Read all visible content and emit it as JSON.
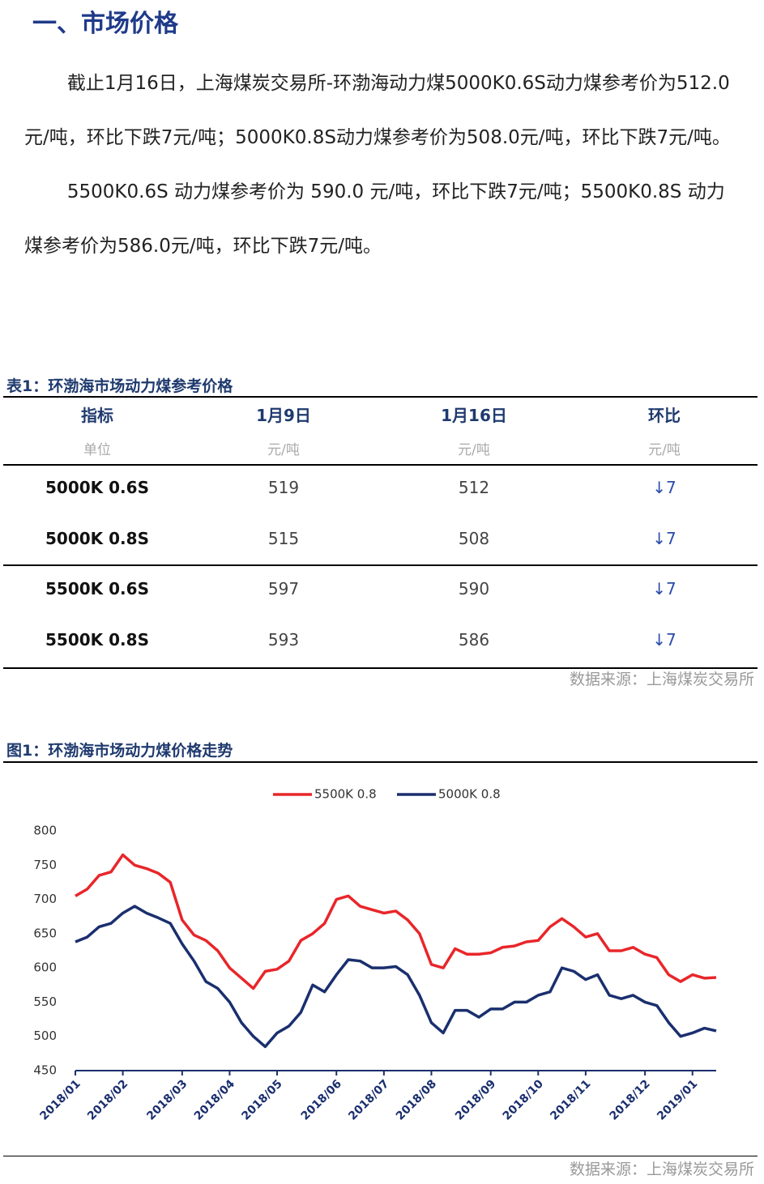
{
  "heading": "一、市场价格",
  "paragraphs": [
    "截止1月16日，上海煤炭交易所-环渤海动力煤5000K0.6S动力煤参考价为512.0元/吨，环比下跌7元/吨；5000K0.8S动力煤参考价为508.0元/吨，环比下跌7元/吨。",
    "5500K0.6S 动力煤参考价为 590.0 元/吨，环比下跌7元/吨；5500K0.8S 动力煤参考价为586.0元/吨，环比下跌7元/吨。"
  ],
  "table": {
    "caption": "表1：环渤海市场动力煤参考价格",
    "header": [
      "指标",
      "1月9日",
      "1月16日",
      "环比"
    ],
    "units": [
      "单位",
      "元/吨",
      "元/吨",
      "元/吨"
    ],
    "rows": [
      [
        "5000K 0.6S",
        "519",
        "512",
        "↓7"
      ],
      [
        "5000K 0.8S",
        "515",
        "508",
        "↓7"
      ],
      [
        "5500K 0.6S",
        "597",
        "590",
        "↓7"
      ],
      [
        "5500K 0.8S",
        "593",
        "586",
        "↓7"
      ]
    ],
    "source": "数据来源：上海煤炭交易所"
  },
  "figure": {
    "caption": "图1：环渤海市场动力煤价格走势",
    "source": "数据来源：上海煤炭交易所"
  },
  "chart_data": {
    "type": "line",
    "categories": [
      "2018/01",
      null,
      null,
      null,
      "2018/02",
      null,
      null,
      null,
      null,
      "2018/03",
      null,
      null,
      null,
      "2018/04",
      null,
      null,
      null,
      "2018/05",
      null,
      null,
      null,
      null,
      "2018/06",
      null,
      null,
      null,
      "2018/07",
      null,
      null,
      null,
      "2018/08",
      null,
      null,
      null,
      null,
      "2018/09",
      null,
      null,
      null,
      "2018/10",
      null,
      null,
      null,
      "2018/11",
      null,
      null,
      null,
      null,
      "2018/12",
      null,
      null,
      null,
      "2019/01",
      null,
      null
    ],
    "series": [
      {
        "name": "5500K 0.8",
        "color": "#e8262a",
        "values": [
          705,
          715,
          735,
          740,
          765,
          750,
          745,
          738,
          725,
          670,
          648,
          640,
          625,
          600,
          585,
          570,
          595,
          598,
          610,
          640,
          650,
          665,
          700,
          705,
          690,
          685,
          680,
          683,
          670,
          650,
          605,
          600,
          628,
          620,
          620,
          622,
          630,
          632,
          638,
          640,
          660,
          672,
          660,
          645,
          650,
          625,
          625,
          630,
          620,
          615,
          590,
          580,
          590,
          585,
          586
        ]
      },
      {
        "name": "5000K 0.8",
        "color": "#1a2f6e",
        "values": [
          638,
          645,
          660,
          665,
          680,
          690,
          680,
          673,
          665,
          635,
          610,
          580,
          570,
          550,
          520,
          500,
          485,
          505,
          515,
          535,
          575,
          565,
          590,
          612,
          610,
          600,
          600,
          602,
          590,
          560,
          520,
          505,
          538,
          538,
          528,
          540,
          540,
          550,
          550,
          560,
          565,
          600,
          595,
          583,
          590,
          560,
          555,
          560,
          550,
          545,
          520,
          500,
          505,
          512,
          508
        ]
      }
    ],
    "ylim": [
      450,
      800
    ],
    "yticks": [
      450,
      500,
      550,
      600,
      650,
      700,
      750,
      800
    ],
    "grid": false,
    "legend": "top"
  }
}
